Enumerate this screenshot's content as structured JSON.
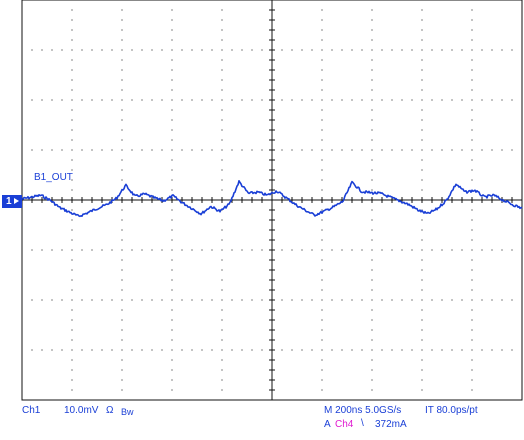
{
  "trace": {
    "label": "B1_OUT",
    "channel_marker": "1",
    "color": "#1a3fd6"
  },
  "readout": {
    "channel": "Ch1",
    "volts_per_div": "10.0mV",
    "impedance_symbol": "Ω",
    "bandwidth": "Bw",
    "timebase": "M 200ns 5.0GS/s",
    "interp": "IT 80.0ps/pt",
    "trigger_prefix": "A",
    "trigger_channel": "Ch4",
    "trigger_slope_symbol": "\\",
    "trigger_level": "372mA",
    "trigger_color": "#e01ad0"
  },
  "grid": {
    "divisions_x": 10,
    "divisions_y": 8,
    "color": "#111111",
    "background": "#ffffff"
  },
  "waveform_description_points": [
    0.0,
    0.3,
    0.6,
    -0.2,
    -1.4,
    -2.1,
    -2.8,
    -2.2,
    -1.5,
    -0.9,
    0.1,
    2.2,
    0.4,
    0.8,
    0.2,
    -0.3,
    0.5,
    -0.6,
    -1.5,
    -2.4,
    -1.2,
    -2.0,
    -0.8,
    2.8,
    0.9,
    1.1,
    0.6,
    1.3,
    0.2,
    -0.9,
    -1.8,
    -2.6,
    -2.0,
    -1.3,
    -0.4,
    2.7,
    1.2,
    1.0,
    0.9,
    0.3,
    -0.3,
    -0.9,
    -1.8,
    -2.4,
    -1.6,
    -0.2,
    2.4,
    1.1,
    1.4,
    0.3,
    0.6,
    -0.2,
    -0.9,
    -1.5
  ]
}
